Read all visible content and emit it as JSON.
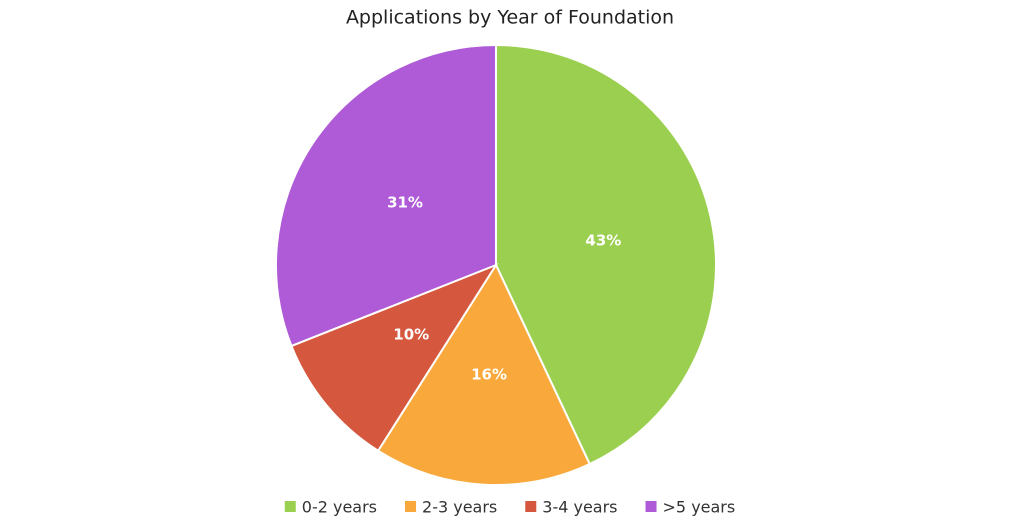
{
  "chart_data": {
    "type": "pie",
    "title": "Applications by Year of Foundation",
    "categories": [
      "0-2 years",
      "2-3 years",
      "3-4 years",
      ">5 years"
    ],
    "values": [
      43,
      16,
      10,
      31
    ],
    "value_labels": [
      "43%",
      "16%",
      "10%",
      "31%"
    ],
    "colors": [
      "#9bcf4f",
      "#f9a93b",
      "#d4573e",
      "#af5ad6"
    ],
    "legend": "bottom"
  }
}
